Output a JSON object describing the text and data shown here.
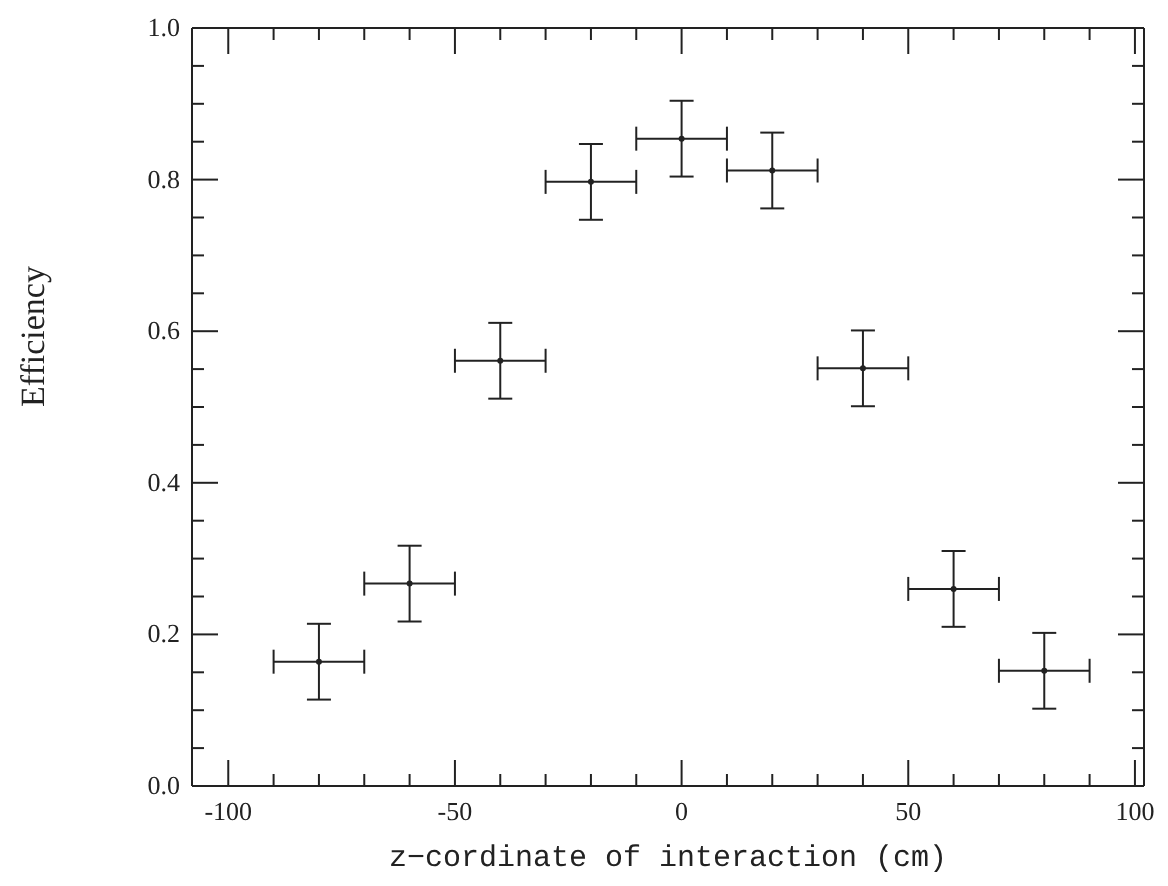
{
  "chart_data": {
    "type": "scatter",
    "xlabel": "z−cordinate of interaction (cm)",
    "ylabel": "Efficiency",
    "x": [
      -80,
      -60,
      -40,
      -20,
      0,
      20,
      40,
      60,
      80
    ],
    "values": [
      0.164,
      0.267,
      0.561,
      0.797,
      0.854,
      0.812,
      0.551,
      0.26,
      0.152
    ],
    "errors": [
      0.05,
      0.05,
      0.05,
      0.05,
      0.05,
      0.05,
      0.05,
      0.05,
      0.05
    ],
    "xerrors": [
      10,
      10,
      10,
      10,
      10,
      10,
      10,
      10,
      10
    ],
    "color": "#222222",
    "xlim": [
      -108,
      102
    ],
    "xticks": [
      -100,
      {
        "value": -90,
        "label": null
      },
      {
        "value": -80,
        "label": null
      },
      {
        "value": -70,
        "label": null
      },
      {
        "value": -60,
        "label": null
      },
      -50,
      {
        "value": -40,
        "label": null
      },
      {
        "value": -30,
        "label": null
      },
      {
        "value": -20,
        "label": null
      },
      {
        "value": -10,
        "label": null
      },
      0,
      {
        "value": 10,
        "label": null
      },
      {
        "value": 20,
        "label": null
      },
      {
        "value": 30,
        "label": null
      },
      {
        "value": 40,
        "label": null
      },
      50,
      {
        "value": 60,
        "label": null
      },
      {
        "value": 70,
        "label": null
      },
      {
        "value": 80,
        "label": null
      },
      {
        "value": 90,
        "label": null
      },
      100
    ],
    "ylim": [
      0,
      1
    ],
    "yticks": [
      {
        "value": 0,
        "label": "0.0"
      },
      {
        "value": 0.05,
        "label": null
      },
      {
        "value": 0.1,
        "label": null
      },
      {
        "value": 0.15,
        "label": null
      },
      0.2,
      {
        "value": 0.25,
        "label": null
      },
      {
        "value": 0.3,
        "label": null
      },
      {
        "value": 0.35,
        "label": null
      },
      0.4,
      {
        "value": 0.45,
        "label": null
      },
      {
        "value": 0.5,
        "label": null
      },
      {
        "value": 0.55,
        "label": null
      },
      0.6,
      {
        "value": 0.65,
        "label": null
      },
      {
        "value": 0.7,
        "label": null
      },
      {
        "value": 0.75,
        "label": null
      },
      0.8,
      {
        "value": 0.85,
        "label": null
      },
      {
        "value": 0.9,
        "label": null
      },
      {
        "value": 0.95,
        "label": null
      },
      {
        "value": 1,
        "label": "1.0"
      }
    ]
  }
}
